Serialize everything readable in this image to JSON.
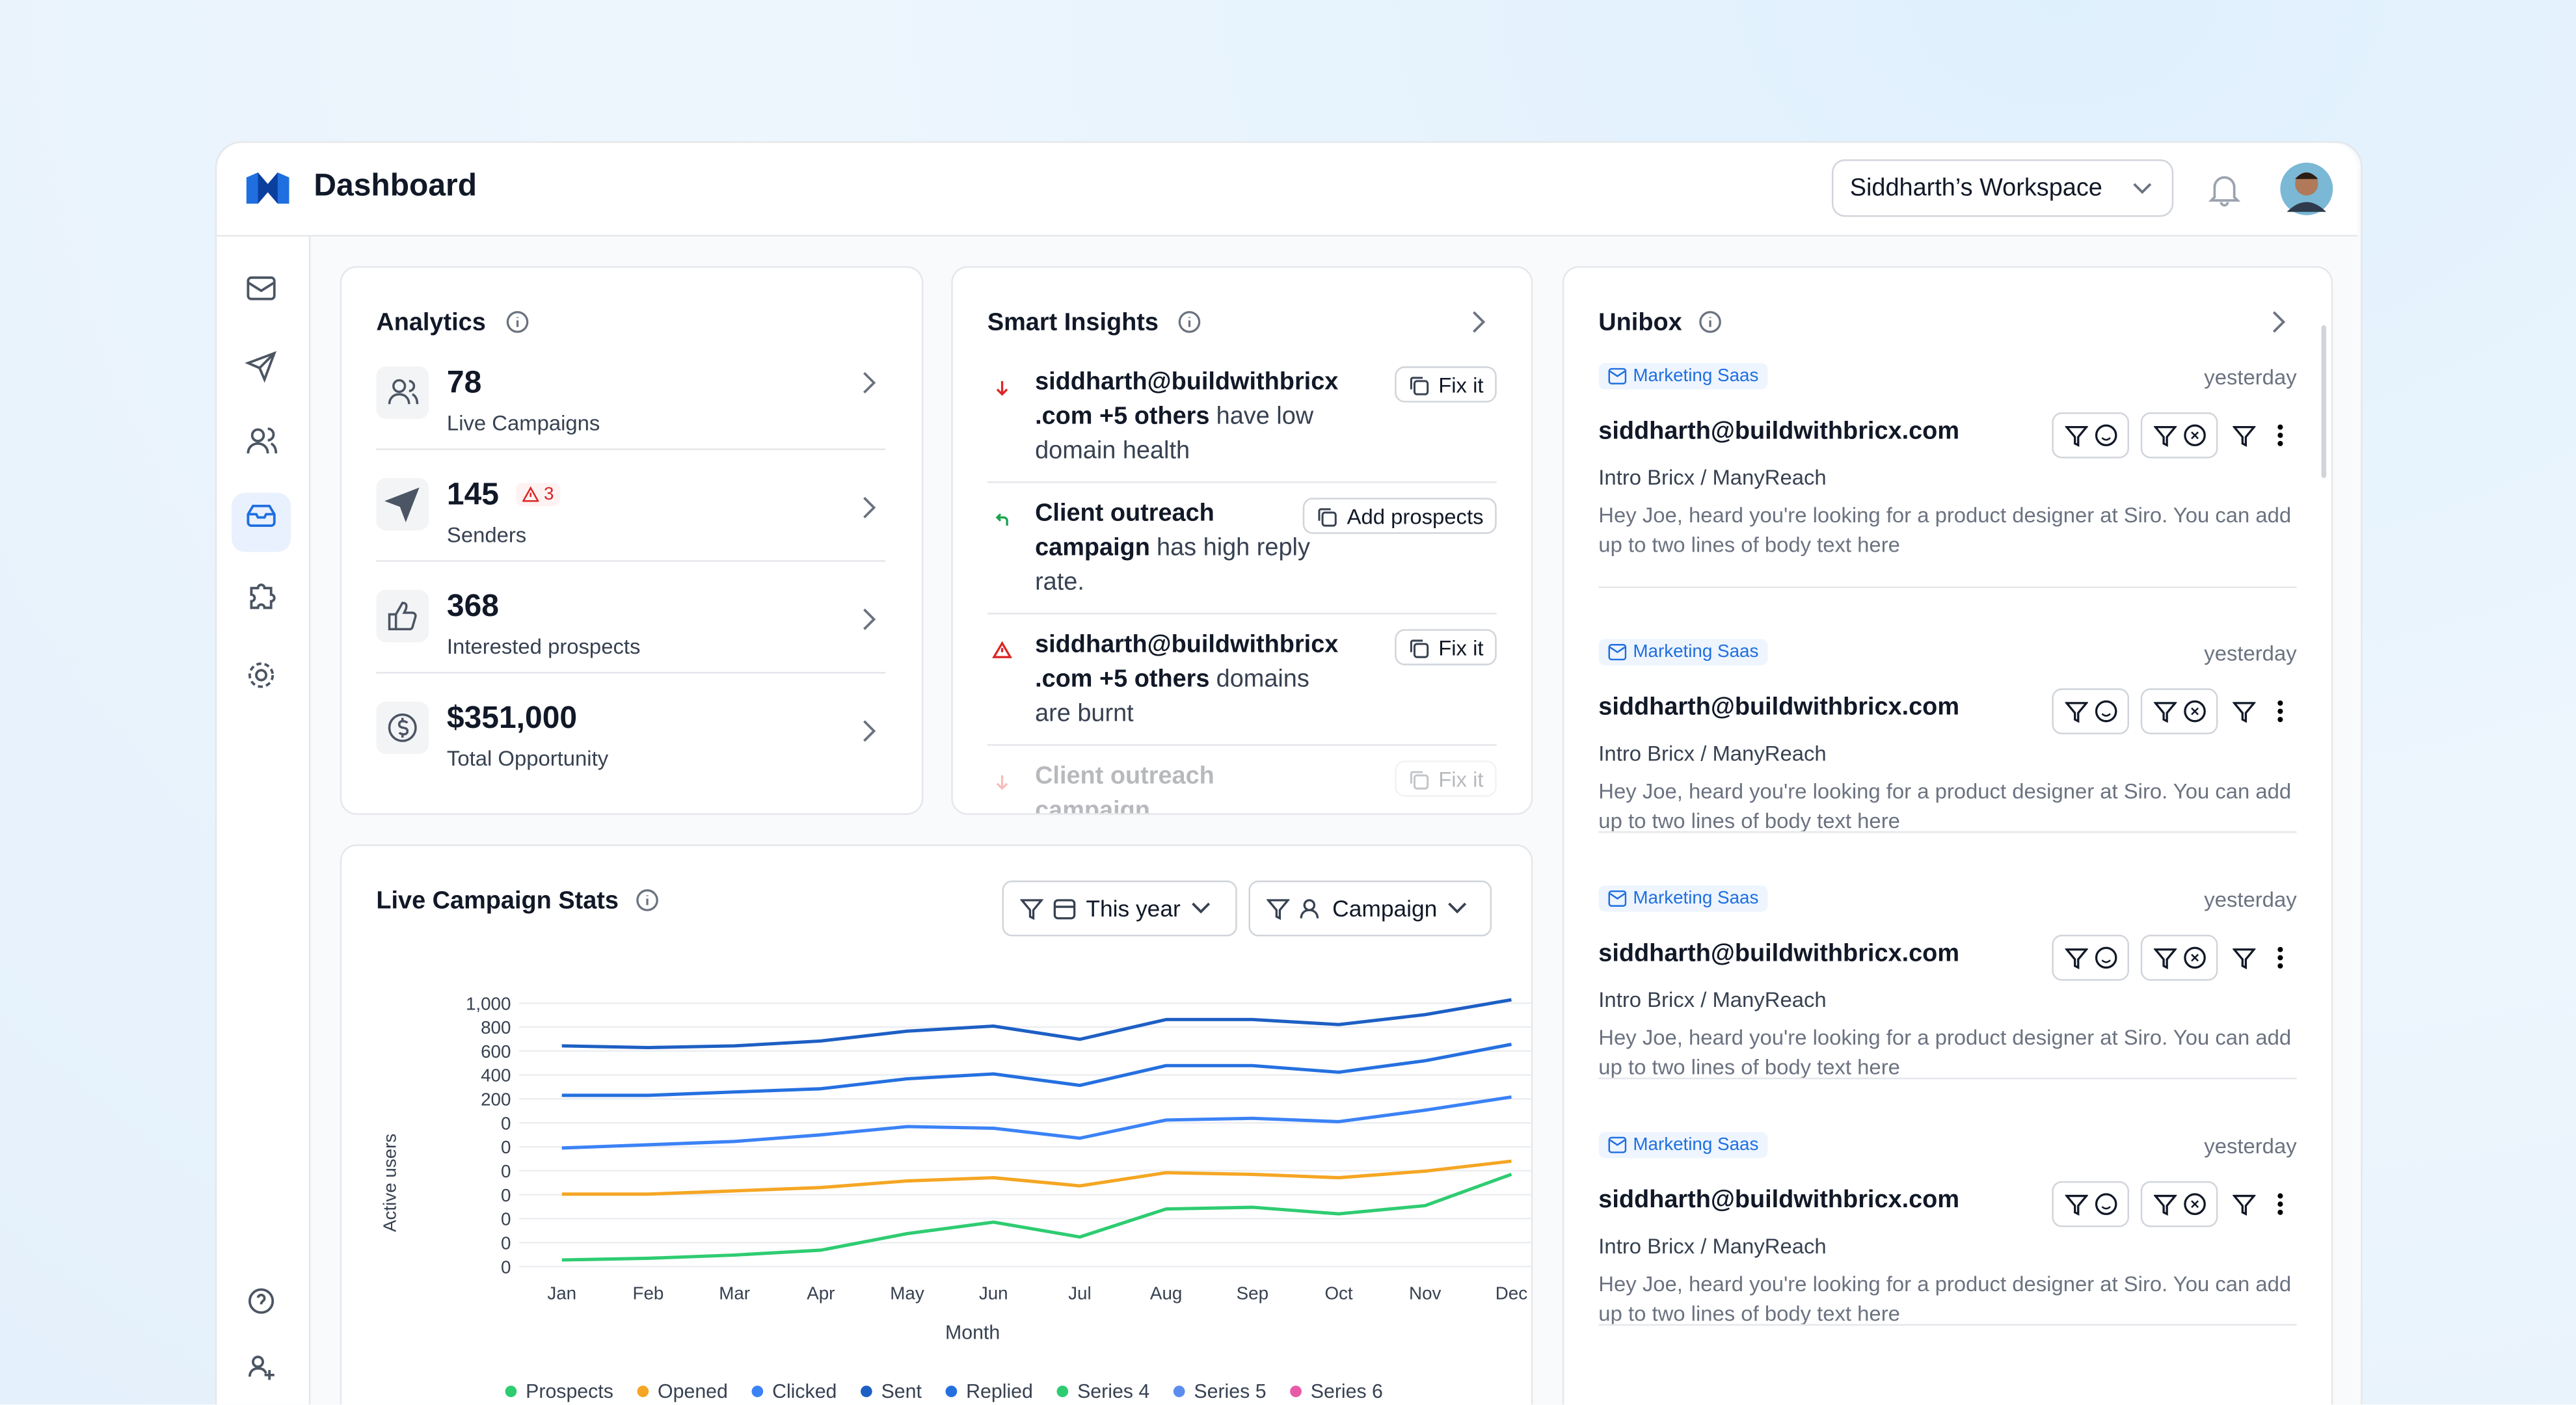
{
  "header": {
    "title": "Dashboard",
    "workspace": "Siddharth’s Workspace"
  },
  "analytics": {
    "title": "Analytics",
    "items": [
      {
        "value": "78",
        "label": "Live Campaigns"
      },
      {
        "value": "145",
        "alert": "3",
        "label": "Senders"
      },
      {
        "value": "368",
        "label": "Interested prospects"
      },
      {
        "value": "$351,000",
        "label": "Total Opportunity"
      }
    ]
  },
  "insights": {
    "title": "Smart Insights",
    "items": [
      {
        "bold": "siddharth@buildwithbricx.com +5 others",
        "text": "have low domain health",
        "action": "Fix it"
      },
      {
        "bold": "Client outreach campaign",
        "text": "has high reply rate.",
        "action": "Add prospects"
      },
      {
        "bold": "siddharth@buildwithbricx.com +5 others",
        "text": "domains are burnt",
        "action": "Fix it"
      },
      {
        "bold": "Client outreach campaign",
        "action": "Fix it"
      }
    ]
  },
  "unibox": {
    "title": "Unibox",
    "items": [
      {
        "tag": "Marketing Saas",
        "time": "yesterday",
        "from": "siddharth@buildwithbricx.com",
        "subject": "Intro Bricx / ManyReach",
        "body": "Hey Joe, heard you're looking for a product designer at Siro.  You can add up to two lines of body text here"
      },
      {
        "tag": "Marketing Saas",
        "time": "yesterday",
        "from": "siddharth@buildwithbricx.com",
        "subject": "Intro Bricx / ManyReach",
        "body": "Hey Joe, heard you're looking for a product designer at Siro.  You can add up to two lines of body text here"
      },
      {
        "tag": "Marketing Saas",
        "time": "yesterday",
        "from": "siddharth@buildwithbricx.com",
        "subject": "Intro Bricx / ManyReach",
        "body": "Hey Joe, heard you're looking for a product designer at Siro.  You can add up to two lines of body text here"
      },
      {
        "tag": "Marketing Saas",
        "time": "yesterday",
        "from": "siddharth@buildwithbricx.com",
        "subject": "Intro Bricx / ManyReach",
        "body": "Hey Joe, heard you're looking for a product designer at Siro.  You can add up to two lines of body text here"
      }
    ]
  },
  "stats": {
    "title": "Live Campaign Stats",
    "filters": [
      "This year",
      "Campaign"
    ]
  },
  "chart_data": {
    "type": "line",
    "x_label": "Month",
    "y_label": "Active users",
    "categories": [
      "Jan",
      "Feb",
      "Mar",
      "Apr",
      "May",
      "Jun",
      "Jul",
      "Aug",
      "Sep",
      "Oct",
      "Nov",
      "Dec"
    ],
    "ylim": [
      -1200,
      1050
    ],
    "yticks": [
      {
        "value": 1000,
        "label": "1,000"
      },
      800,
      600,
      400,
      200,
      0,
      {
        "value": -200,
        "label": "0"
      },
      {
        "value": -400,
        "label": "0"
      },
      {
        "value": -600,
        "label": "0"
      },
      {
        "value": -800,
        "label": "0"
      },
      {
        "value": -1000,
        "label": "0"
      },
      {
        "value": -1200,
        "label": "0"
      }
    ],
    "grid": true,
    "series": [
      {
        "name": "Prospects",
        "color": "#2ecc71",
        "values": [
          -1145,
          -1131,
          -1104,
          -1063,
          -925,
          -829,
          -953,
          -719,
          -705,
          -760,
          -691,
          -430
        ]
      },
      {
        "name": "Opened",
        "color": "#f5a623",
        "values": [
          -595,
          -595,
          -568,
          -540,
          -485,
          -458,
          -526,
          -416,
          -430,
          -458,
          -403,
          -320
        ]
      },
      {
        "name": "Clicked",
        "color": "#3b82f6",
        "values": [
          -210,
          -183,
          -155,
          -100,
          -31,
          -45,
          -128,
          24,
          38,
          10,
          106,
          216
        ]
      },
      {
        "name": "Sent",
        "color": "#1d5fc4",
        "values": [
          643,
          629,
          643,
          684,
          766,
          808,
          698,
          863,
          863,
          821,
          904,
          1028
        ]
      },
      {
        "name": "Replied",
        "color": "#2570e0",
        "values": [
          230,
          230,
          258,
          285,
          368,
          409,
          313,
          478,
          478,
          423,
          519,
          656
        ]
      },
      {
        "name": "Series 4",
        "color": "#2ecc71",
        "values": [
          null,
          null,
          null,
          null,
          null,
          null,
          null,
          null,
          null,
          null,
          null,
          null
        ]
      },
      {
        "name": "Series 5",
        "color": "#5b8def",
        "values": [
          null,
          null,
          null,
          null,
          null,
          null,
          null,
          null,
          null,
          null,
          null,
          null
        ]
      },
      {
        "name": "Series 6",
        "color": "#e85aa8",
        "values": [
          null,
          null,
          null,
          null,
          null,
          null,
          null,
          null,
          null,
          null,
          null,
          null
        ]
      }
    ]
  }
}
